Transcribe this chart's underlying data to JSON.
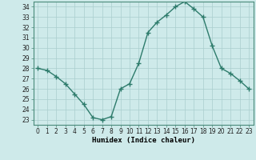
{
  "x": [
    0,
    1,
    2,
    3,
    4,
    5,
    6,
    7,
    8,
    9,
    10,
    11,
    12,
    13,
    14,
    15,
    16,
    17,
    18,
    19,
    20,
    21,
    22,
    23
  ],
  "y": [
    28.0,
    27.8,
    27.2,
    26.5,
    25.5,
    24.5,
    23.2,
    23.0,
    23.3,
    26.0,
    26.5,
    28.5,
    31.5,
    32.5,
    33.2,
    34.0,
    34.5,
    33.8,
    33.0,
    30.2,
    28.0,
    27.5,
    26.8,
    26.0
  ],
  "line_color": "#2d7b6b",
  "marker": "+",
  "marker_size": 4,
  "bg_color": "#ceeaea",
  "grid_color": "#aacece",
  "xlabel": "Humidex (Indice chaleur)",
  "xlim": [
    -0.5,
    23.5
  ],
  "ylim": [
    22.5,
    34.5
  ],
  "yticks": [
    23,
    24,
    25,
    26,
    27,
    28,
    29,
    30,
    31,
    32,
    33,
    34
  ],
  "xticks": [
    0,
    1,
    2,
    3,
    4,
    5,
    6,
    7,
    8,
    9,
    10,
    11,
    12,
    13,
    14,
    15,
    16,
    17,
    18,
    19,
    20,
    21,
    22,
    23
  ],
  "tick_label_fontsize": 5.5,
  "xlabel_fontsize": 6.5,
  "line_width": 1.0,
  "marker_color": "#2d7b6b",
  "spine_color": "#4a8a7a"
}
